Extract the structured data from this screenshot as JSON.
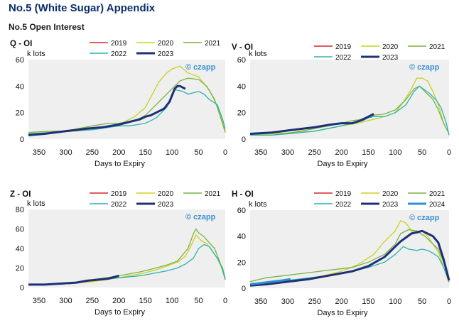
{
  "page": {
    "title": "No.5 (White Sugar) Appendix",
    "subtitle": "No.5 Open Interest"
  },
  "watermark": "czapp",
  "colors": {
    "2019": "#d62728",
    "2020": "#c8d21e",
    "2021": "#7ab342",
    "2022": "#2ab3b0",
    "2023": "#1f2f78",
    "2024": "#2e8fd0"
  },
  "chart_data": [
    {
      "id": "q",
      "type": "line",
      "title": "Q - OI",
      "ylabel": "k lots",
      "xlabel": "Days to Expiry",
      "xlim": [
        370,
        0
      ],
      "ylim": [
        0,
        60
      ],
      "xticks": [
        350,
        300,
        250,
        200,
        150,
        100,
        50,
        0
      ],
      "yticks": [
        0,
        20,
        40,
        60
      ],
      "legend_columns": 3,
      "series": [
        {
          "name": "2019",
          "x": [],
          "y": []
        },
        {
          "name": "2020",
          "x": [
            370,
            330,
            280,
            240,
            200,
            170,
            150,
            125,
            110,
            100,
            85,
            70,
            50,
            30,
            15,
            5,
            0
          ],
          "y": [
            4,
            5,
            6,
            8,
            11,
            17,
            24,
            43,
            50,
            53,
            55,
            50,
            47,
            37,
            25,
            14,
            6
          ]
        },
        {
          "name": "2021",
          "x": [
            370,
            330,
            300,
            250,
            220,
            200,
            170,
            150,
            135,
            120,
            100,
            85,
            70,
            50,
            35,
            20,
            10,
            0
          ],
          "y": [
            5,
            6,
            6,
            10,
            12,
            12,
            14,
            18,
            24,
            30,
            38,
            44,
            46,
            45,
            40,
            30,
            18,
            5
          ]
        },
        {
          "name": "2022",
          "x": [
            370,
            330,
            300,
            250,
            200,
            180,
            165,
            150,
            140,
            130,
            120,
            110,
            100,
            95,
            90,
            80,
            70,
            60,
            50,
            40,
            30,
            15,
            5,
            0
          ],
          "y": [
            4,
            5,
            6,
            7,
            10,
            10,
            11,
            12,
            14,
            16,
            20,
            24,
            34,
            37,
            37,
            36,
            34,
            35,
            36,
            34,
            30,
            26,
            15,
            8
          ]
        },
        {
          "name": "2023",
          "x": [
            370,
            340,
            300,
            260,
            230,
            200,
            180,
            160,
            150,
            140,
            130,
            115,
            105,
            95,
            90,
            85,
            80,
            75
          ],
          "y": [
            3,
            4,
            6,
            8,
            9,
            11,
            13,
            15,
            17,
            18,
            20,
            23,
            28,
            38,
            40,
            40,
            39,
            38
          ]
        }
      ]
    },
    {
      "id": "v",
      "type": "line",
      "title": "V - OI",
      "ylabel": "k lots",
      "xlabel": "Days to Expiry",
      "xlim": [
        370,
        0
      ],
      "ylim": [
        0,
        60
      ],
      "xticks": [
        350,
        300,
        250,
        200,
        150,
        100,
        50,
        0
      ],
      "yticks": [
        0,
        20,
        40,
        60
      ],
      "legend_columns": 3,
      "series": [
        {
          "name": "2019",
          "x": [],
          "y": []
        },
        {
          "name": "2020",
          "x": [
            370,
            330,
            290,
            250,
            200,
            170,
            150,
            120,
            100,
            85,
            70,
            60,
            50,
            40,
            30,
            20,
            10,
            0
          ],
          "y": [
            3,
            4,
            5,
            6,
            10,
            12,
            14,
            17,
            20,
            28,
            38,
            46,
            46,
            44,
            36,
            26,
            12,
            4
          ]
        },
        {
          "name": "2021",
          "x": [
            370,
            330,
            290,
            250,
            200,
            180,
            160,
            140,
            120,
            100,
            80,
            65,
            55,
            45,
            30,
            20,
            10,
            0
          ],
          "y": [
            3,
            3,
            5,
            8,
            12,
            14,
            15,
            18,
            19,
            22,
            30,
            38,
            40,
            36,
            30,
            22,
            12,
            4
          ]
        },
        {
          "name": "2022",
          "x": [
            370,
            330,
            300,
            250,
            200,
            180,
            160,
            150,
            140,
            120,
            100,
            80,
            65,
            55,
            45,
            35,
            25,
            15,
            5,
            0
          ],
          "y": [
            3,
            3,
            4,
            6,
            10,
            12,
            14,
            16,
            17,
            17,
            20,
            26,
            36,
            40,
            37,
            34,
            30,
            24,
            12,
            3
          ]
        },
        {
          "name": "2023",
          "x": [
            370,
            330,
            290,
            250,
            220,
            200,
            180,
            165,
            150,
            140
          ],
          "y": [
            4,
            5,
            7,
            9,
            11,
            12,
            12,
            14,
            17,
            19
          ]
        }
      ]
    },
    {
      "id": "z",
      "type": "line",
      "title": "Z - OI",
      "ylabel": "k lots",
      "xlabel": "Days to Expiry",
      "xlim": [
        370,
        0
      ],
      "ylim": [
        0,
        80
      ],
      "xticks": [
        350,
        300,
        250,
        200,
        150,
        100,
        50,
        0
      ],
      "yticks": [
        0,
        20,
        40,
        60,
        80
      ],
      "legend_columns": 3,
      "series": [
        {
          "name": "2019",
          "x": [],
          "y": []
        },
        {
          "name": "2020",
          "x": [
            370,
            330,
            290,
            250,
            200,
            160,
            130,
            110,
            90,
            75,
            65,
            55,
            45,
            35,
            25,
            15,
            5,
            0
          ],
          "y": [
            3,
            3,
            4,
            6,
            10,
            14,
            18,
            22,
            26,
            32,
            42,
            54,
            48,
            45,
            38,
            30,
            18,
            8
          ]
        },
        {
          "name": "2021",
          "x": [
            370,
            330,
            290,
            250,
            200,
            160,
            130,
            110,
            90,
            70,
            60,
            55,
            50,
            40,
            30,
            20,
            10,
            0
          ],
          "y": [
            3,
            3,
            4,
            8,
            12,
            16,
            20,
            23,
            27,
            40,
            55,
            60,
            56,
            52,
            46,
            40,
            26,
            8
          ]
        },
        {
          "name": "2022",
          "x": [
            370,
            330,
            290,
            250,
            200,
            160,
            130,
            110,
            90,
            75,
            60,
            50,
            40,
            30,
            25,
            15,
            5,
            0
          ],
          "y": [
            3,
            3,
            4,
            7,
            10,
            12,
            15,
            17,
            20,
            24,
            30,
            40,
            44,
            42,
            38,
            30,
            20,
            9
          ]
        },
        {
          "name": "2023",
          "x": [
            370,
            340,
            310,
            280,
            260,
            240,
            220,
            200
          ],
          "y": [
            3,
            3,
            4,
            5,
            7,
            8,
            9,
            12
          ]
        }
      ]
    },
    {
      "id": "h",
      "type": "line",
      "title": "H - OI",
      "ylabel": "k lots",
      "xlabel": "Days to Expiry",
      "xlim": [
        370,
        0
      ],
      "ylim": [
        0,
        60
      ],
      "xticks": [
        350,
        300,
        250,
        200,
        150,
        100,
        50,
        0
      ],
      "yticks": [
        0,
        20,
        40,
        60
      ],
      "legend_columns": 3,
      "series": [
        {
          "name": "2019",
          "x": [],
          "y": []
        },
        {
          "name": "2020",
          "x": [
            370,
            330,
            290,
            250,
            200,
            170,
            140,
            120,
            100,
            90,
            80,
            70,
            60,
            50,
            40,
            30,
            20,
            10,
            0
          ],
          "y": [
            2,
            3,
            5,
            8,
            13,
            18,
            26,
            36,
            44,
            52,
            50,
            44,
            42,
            44,
            40,
            34,
            28,
            16,
            4
          ]
        },
        {
          "name": "2021",
          "x": [
            370,
            340,
            300,
            260,
            220,
            180,
            150,
            120,
            100,
            90,
            75,
            60,
            45,
            30,
            20,
            10,
            0
          ],
          "y": [
            5,
            8,
            10,
            12,
            14,
            16,
            20,
            26,
            34,
            42,
            45,
            44,
            40,
            34,
            30,
            20,
            6
          ]
        },
        {
          "name": "2022",
          "x": [
            370,
            340,
            300,
            260,
            220,
            180,
            150,
            120,
            100,
            85,
            75,
            60,
            50,
            40,
            30,
            20,
            10,
            0
          ],
          "y": [
            3,
            4,
            6,
            8,
            10,
            13,
            16,
            20,
            26,
            32,
            30,
            29,
            30,
            29,
            27,
            24,
            16,
            5
          ]
        },
        {
          "name": "2023",
          "x": [
            370,
            340,
            300,
            260,
            220,
            180,
            150,
            120,
            100,
            90,
            70,
            50,
            30,
            20,
            10,
            0
          ],
          "y": [
            2,
            3,
            5,
            7,
            10,
            13,
            17,
            24,
            32,
            36,
            42,
            44,
            40,
            35,
            22,
            6
          ]
        },
        {
          "name": "2024",
          "x": [
            370,
            350,
            330,
            310,
            295
          ],
          "y": [
            3,
            4,
            5,
            6,
            7
          ]
        }
      ]
    }
  ]
}
